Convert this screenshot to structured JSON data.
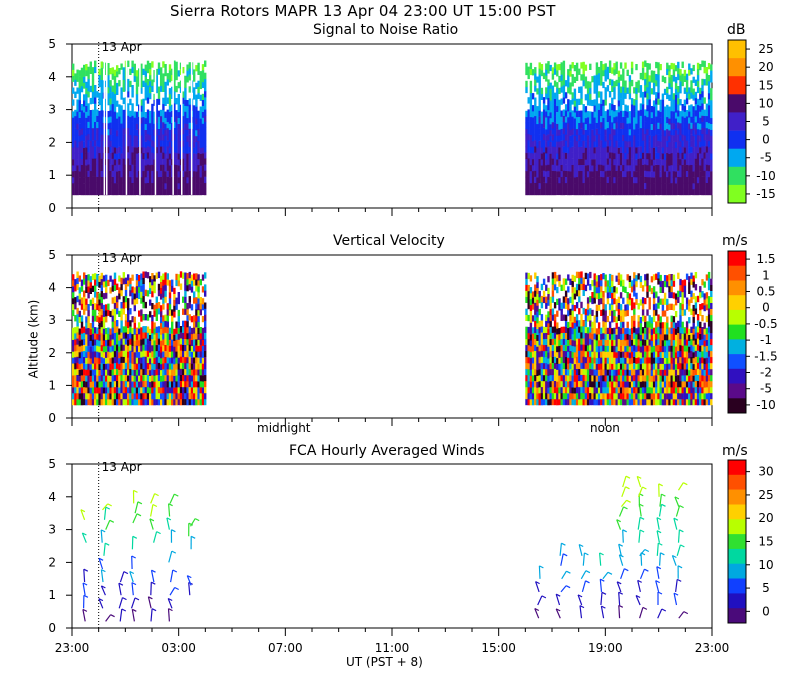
{
  "figure": {
    "title": "Sierra Rotors   MAPR 13 Apr 04   23:00 UT   15:00   PST",
    "y_axis_label": "Altitude (km)",
    "x_axis_label": "UT  (PST + 8)",
    "x_tick_labels": [
      "23:00",
      "03:00",
      "07:00",
      "11:00",
      "15:00",
      "19:00",
      "23:00"
    ],
    "date_marker": "13 Apr",
    "midnight_label": "midnight",
    "noon_label": "noon"
  },
  "chart_data": [
    {
      "type": "heatmap",
      "title": "Signal to Noise Ratio",
      "xlabel": "UT (PST + 8)",
      "ylabel": "Altitude (km)",
      "xlim_hours": [
        0,
        24
      ],
      "ylim": [
        0,
        5
      ],
      "y_ticks": [
        0,
        1,
        2,
        3,
        4,
        5
      ],
      "data_segments_hours": [
        [
          0,
          5
        ],
        [
          17,
          24
        ]
      ],
      "top_km": 4.5,
      "bottom_km": 0.4,
      "colorbar_unit": "dB",
      "colorbar_labels": [
        "25",
        "20",
        "15",
        "10",
        "5",
        "0",
        "-5",
        "-10",
        "-15"
      ],
      "colorbar_colors": [
        "#ffc000",
        "#ff9000",
        "#ff3000",
        "#4a0a6a",
        "#4020c8",
        "#1030f0",
        "#00a8f0",
        "#30e060",
        "#80ff20"
      ]
    },
    {
      "type": "heatmap",
      "title": "Vertical Velocity",
      "xlabel": "UT (PST + 8)",
      "ylabel": "Altitude (km)",
      "xlim_hours": [
        0,
        24
      ],
      "ylim": [
        0,
        5
      ],
      "y_ticks": [
        0,
        1,
        2,
        3,
        4,
        5
      ],
      "data_segments_hours": [
        [
          0,
          5
        ],
        [
          17,
          24
        ]
      ],
      "top_km": 4.5,
      "bottom_km": 0.4,
      "colorbar_unit": "m/s",
      "colorbar_labels": [
        "1.5",
        "1",
        "0.5",
        "0",
        "-0.5",
        "-1",
        "-1.5",
        "-2",
        "-5",
        "-10"
      ],
      "colorbar_colors": [
        "#ff0000",
        "#ff5000",
        "#ff9000",
        "#ffd000",
        "#b8ff00",
        "#20e020",
        "#00b0e0",
        "#1050ff",
        "#3010c0",
        "#5a0a8a",
        "#2a0020"
      ]
    },
    {
      "type": "scatter",
      "title": "FCA Hourly Averaged Winds",
      "xlabel": "UT (PST + 8)",
      "ylabel": "Altitude (km)",
      "xlim_hours": [
        0,
        24
      ],
      "ylim": [
        0,
        5
      ],
      "y_ticks": [
        0,
        1,
        2,
        3,
        4,
        5
      ],
      "colorbar_unit": "m/s",
      "colorbar_labels": [
        "30",
        "25",
        "20",
        "15",
        "10",
        "5",
        "0"
      ],
      "colorbar_colors": [
        "#ff0000",
        "#ff5000",
        "#ff9000",
        "#ffd000",
        "#b8ff00",
        "#30e030",
        "#00d8a0",
        "#00a8e0",
        "#1040ff",
        "#2010c0",
        "#4a0a7a"
      ],
      "barb_columns": [
        {
          "hour": 0.5,
          "alts": [
            0.2,
            0.6,
            1.0,
            1.4,
            2.6,
            3.3
          ]
        },
        {
          "hour": 1.2,
          "alts": [
            0.2,
            0.6,
            1.0,
            1.4,
            1.8,
            2.2,
            2.6,
            3.0,
            3.3,
            3.6
          ]
        },
        {
          "hour": 1.8,
          "alts": [
            0.2,
            0.6,
            1.0,
            1.4
          ]
        },
        {
          "hour": 2.3,
          "alts": [
            0.2,
            0.6,
            1.0,
            1.4,
            1.8,
            2.4,
            3.2,
            3.5,
            3.8
          ]
        },
        {
          "hour": 3.0,
          "alts": [
            0.2,
            0.6,
            1.0,
            1.4,
            2.6,
            3.0,
            3.4,
            3.8
          ]
        },
        {
          "hour": 3.7,
          "alts": [
            0.2,
            0.6,
            1.0,
            1.4,
            2.0,
            2.6,
            3.0,
            3.4,
            3.8
          ]
        },
        {
          "hour": 4.4,
          "alts": [
            1.0,
            1.3,
            2.4,
            2.8,
            3.1
          ]
        },
        {
          "hour": 17.5,
          "alts": [
            0.3,
            0.7,
            1.1,
            1.5
          ]
        },
        {
          "hour": 18.3,
          "alts": [
            0.3,
            0.7,
            1.1,
            1.5,
            1.9,
            2.2
          ]
        },
        {
          "hour": 19.1,
          "alts": [
            0.3,
            0.7,
            1.1,
            1.5,
            1.9,
            2.2
          ]
        },
        {
          "hour": 19.9,
          "alts": [
            0.3,
            0.7,
            1.1,
            1.5,
            1.9
          ]
        },
        {
          "hour": 20.6,
          "alts": [
            0.3,
            0.7,
            1.1,
            1.5,
            1.9,
            2.2,
            2.6,
            3.0,
            3.4,
            3.7,
            4.0,
            4.3
          ]
        },
        {
          "hour": 21.3,
          "alts": [
            0.3,
            0.7,
            1.1,
            1.5,
            1.9,
            2.2,
            2.6,
            3.0,
            3.4,
            3.7,
            4.0,
            4.3
          ]
        },
        {
          "hour": 22.0,
          "alts": [
            0.3,
            0.7,
            1.1,
            1.5,
            1.9,
            2.2,
            2.6,
            3.0,
            3.4,
            3.7,
            4.0
          ]
        },
        {
          "hour": 22.7,
          "alts": [
            0.3,
            0.7,
            1.1,
            1.5,
            1.9,
            2.2,
            2.6,
            3.0,
            3.4,
            3.7,
            4.2
          ]
        }
      ]
    }
  ]
}
